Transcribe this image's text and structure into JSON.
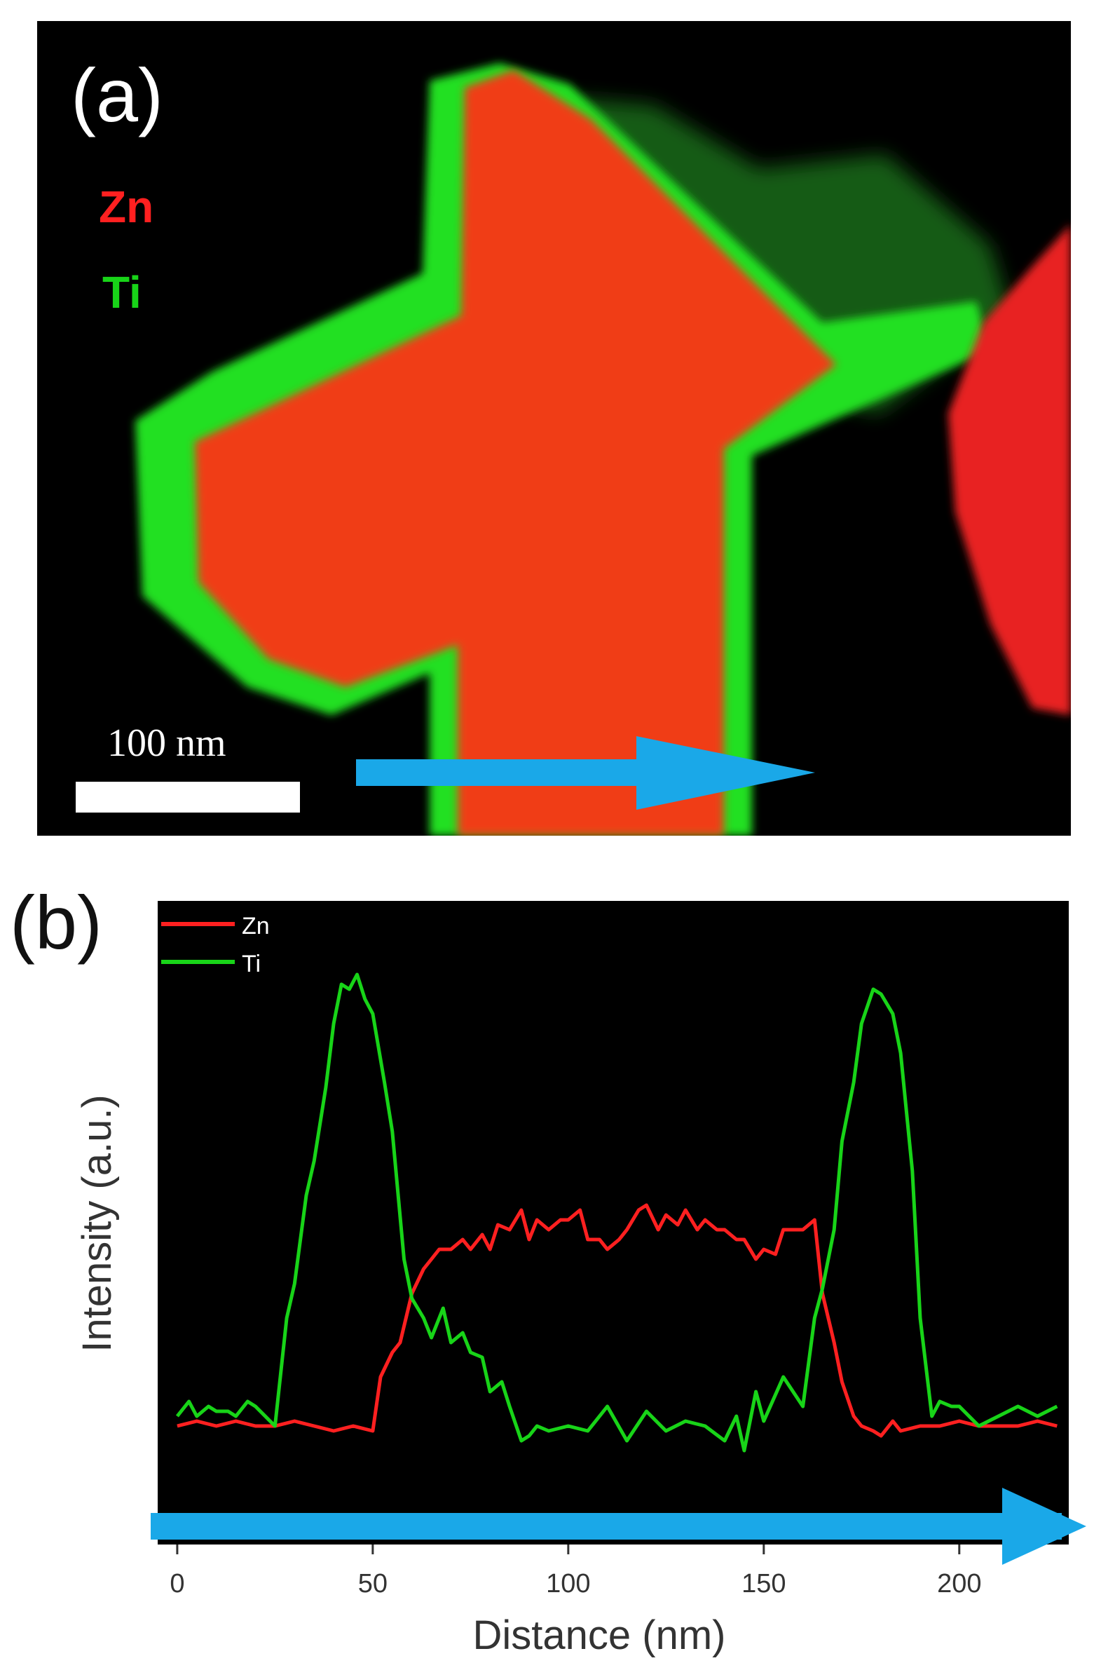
{
  "panel_a": {
    "label": "(a)",
    "legend": [
      {
        "name": "Zn",
        "color": "#ff2020"
      },
      {
        "name": "Ti",
        "color": "#18d418"
      }
    ],
    "scale_bar": "100 nm"
  },
  "panel_b": {
    "label": "(b)"
  },
  "chart_data": {
    "type": "line",
    "xlabel": "Distance (nm)",
    "ylabel": "Intensity (a.u.)",
    "xlim": [
      -5,
      228
    ],
    "ylim": [
      0,
      100
    ],
    "xticks": [
      0,
      50,
      100,
      150,
      200
    ],
    "legend_position": "top-left",
    "background": "#000000",
    "series": [
      {
        "name": "Zn",
        "color": "#ff2020",
        "x": [
          0,
          5,
          10,
          15,
          20,
          25,
          30,
          35,
          40,
          45,
          50,
          52,
          55,
          57,
          60,
          63,
          65,
          67,
          70,
          73,
          75,
          78,
          80,
          82,
          85,
          88,
          90,
          92,
          95,
          98,
          100,
          103,
          105,
          108,
          110,
          113,
          115,
          118,
          120,
          123,
          125,
          128,
          130,
          133,
          135,
          138,
          140,
          143,
          145,
          148,
          150,
          153,
          155,
          158,
          160,
          163,
          165,
          168,
          170,
          173,
          175,
          178,
          180,
          183,
          185,
          190,
          195,
          200,
          205,
          210,
          215,
          220,
          225
        ],
        "values": [
          8,
          9,
          8,
          9,
          8,
          8,
          9,
          8,
          7,
          8,
          7,
          18,
          23,
          25,
          35,
          40,
          42,
          44,
          44,
          46,
          44,
          47,
          44,
          49,
          48,
          52,
          46,
          50,
          48,
          50,
          50,
          52,
          46,
          46,
          44,
          46,
          48,
          52,
          53,
          48,
          51,
          49,
          52,
          48,
          50,
          48,
          48,
          46,
          46,
          42,
          44,
          43,
          48,
          48,
          48,
          50,
          35,
          25,
          17,
          10,
          8,
          7,
          6,
          9,
          7,
          8,
          8,
          9,
          8,
          8,
          8,
          9,
          8
        ],
        "hint": "Core rises between ~50–60 nm and drops between ~165–175 nm"
      },
      {
        "name": "Ti",
        "color": "#18d418",
        "x": [
          0,
          3,
          5,
          8,
          10,
          13,
          15,
          18,
          20,
          25,
          28,
          30,
          33,
          35,
          38,
          40,
          42,
          44,
          46,
          48,
          50,
          53,
          55,
          58,
          60,
          63,
          65,
          68,
          70,
          73,
          75,
          78,
          80,
          83,
          85,
          88,
          90,
          92,
          95,
          100,
          105,
          110,
          115,
          120,
          125,
          130,
          135,
          140,
          143,
          145,
          148,
          150,
          155,
          160,
          163,
          165,
          168,
          170,
          173,
          175,
          178,
          180,
          183,
          185,
          188,
          190,
          193,
          195,
          198,
          200,
          205,
          210,
          215,
          220,
          225
        ],
        "values": [
          10,
          13,
          10,
          12,
          11,
          11,
          10,
          13,
          12,
          8,
          30,
          37,
          55,
          62,
          77,
          90,
          98,
          97,
          100,
          95,
          92,
          78,
          68,
          42,
          34,
          30,
          26,
          32,
          25,
          27,
          23,
          22,
          15,
          17,
          12,
          5,
          6,
          8,
          7,
          8,
          7,
          12,
          5,
          11,
          7,
          9,
          8,
          5,
          10,
          3,
          15,
          9,
          18,
          12,
          30,
          36,
          48,
          66,
          78,
          90,
          97,
          96,
          92,
          84,
          60,
          30,
          10,
          13,
          12,
          12,
          8,
          10,
          12,
          10,
          12
        ],
        "hint": "Shell peaks near 45–50 nm and 180 nm"
      }
    ]
  }
}
